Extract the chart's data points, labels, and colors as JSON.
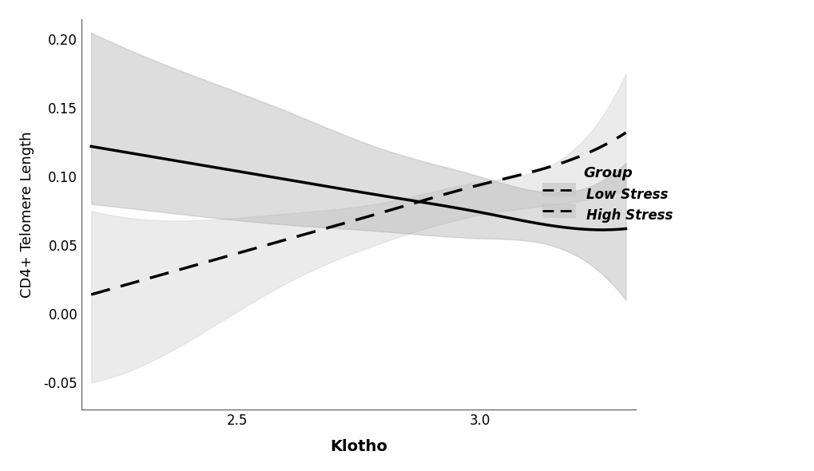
{
  "title": "",
  "xlabel": "Klotho",
  "ylabel": "CD4+ Telomere Length",
  "xlim": [
    2.18,
    3.32
  ],
  "ylim": [
    -0.07,
    0.215
  ],
  "xticks": [
    2.5,
    3.0
  ],
  "yticks": [
    -0.05,
    0.0,
    0.05,
    0.1,
    0.15,
    0.2
  ],
  "low_stress": {
    "x_vals": [
      2.2,
      2.4,
      2.6,
      2.8,
      3.0,
      3.2,
      3.3
    ],
    "y_vals": [
      0.122,
      0.11,
      0.098,
      0.086,
      0.074,
      0.062,
      0.062
    ],
    "ci_upper": [
      0.205,
      0.175,
      0.148,
      0.12,
      0.1,
      0.09,
      0.11
    ],
    "ci_lower": [
      0.08,
      0.072,
      0.065,
      0.06,
      0.055,
      0.042,
      0.01
    ]
  },
  "high_stress": {
    "x_vals": [
      2.2,
      2.4,
      2.6,
      2.8,
      3.0,
      3.2,
      3.3
    ],
    "y_vals": [
      0.014,
      0.034,
      0.054,
      0.074,
      0.094,
      0.114,
      0.132
    ],
    "ci_upper": [
      0.075,
      0.068,
      0.073,
      0.081,
      0.096,
      0.122,
      0.175
    ],
    "ci_lower": [
      -0.05,
      -0.02,
      0.022,
      0.052,
      0.072,
      0.082,
      0.09
    ]
  },
  "ci_alpha_low": 0.4,
  "ci_alpha_high": 0.35,
  "ci_color_low": "#aaaaaa",
  "ci_color_high": "#c8c8c8",
  "line_color": "#000000",
  "bg_color": "#ffffff",
  "legend_title": "Group",
  "legend_label_low": "Low Stress",
  "legend_label_high": "High Stress"
}
